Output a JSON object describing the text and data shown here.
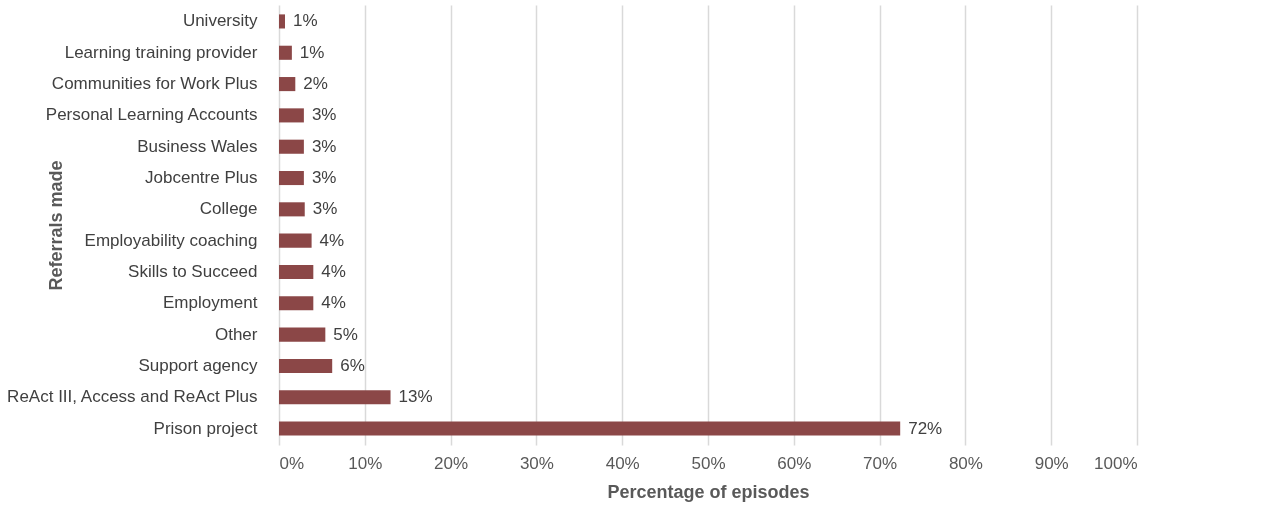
{
  "chart_data": {
    "type": "bar",
    "orientation": "horizontal",
    "xlabel": "Percentage of episodes",
    "ylabel": "Referrals made",
    "categories": [
      "University",
      "Learning training provider",
      "Communities for Work Plus",
      "Personal Learning Accounts",
      "Business Wales",
      "Jobcentre Plus",
      "College",
      "Employability coaching",
      "Skills to Succeed",
      "Employment",
      "Other",
      "Support agency",
      "ReAct III, Access and ReAct Plus",
      "Prison project"
    ],
    "values": [
      0.7,
      1.5,
      1.9,
      2.9,
      2.9,
      2.9,
      3.0,
      3.8,
      4.0,
      4.0,
      5.4,
      6.2,
      13.0,
      72.4
    ],
    "value_labels": [
      "1%",
      "1%",
      "2%",
      "3%",
      "3%",
      "3%",
      "3%",
      "4%",
      "4%",
      "4%",
      "5%",
      "6%",
      "13%",
      "72%"
    ],
    "color": "#8b4747",
    "xlim": [
      0,
      100
    ],
    "xticks": [
      {
        "value": 0,
        "label": "0%"
      },
      {
        "value": 10,
        "label": "10%"
      },
      {
        "value": 20,
        "label": "20%"
      },
      {
        "value": 30,
        "label": "30%"
      },
      {
        "value": 40,
        "label": "40%"
      },
      {
        "value": 50,
        "label": "50%"
      },
      {
        "value": 60,
        "label": "60%"
      },
      {
        "value": 70,
        "label": "70%"
      },
      {
        "value": 80,
        "label": "80%"
      },
      {
        "value": 90,
        "label": "90%"
      },
      {
        "value": 100,
        "label": "100%"
      }
    ],
    "grid": "x"
  }
}
